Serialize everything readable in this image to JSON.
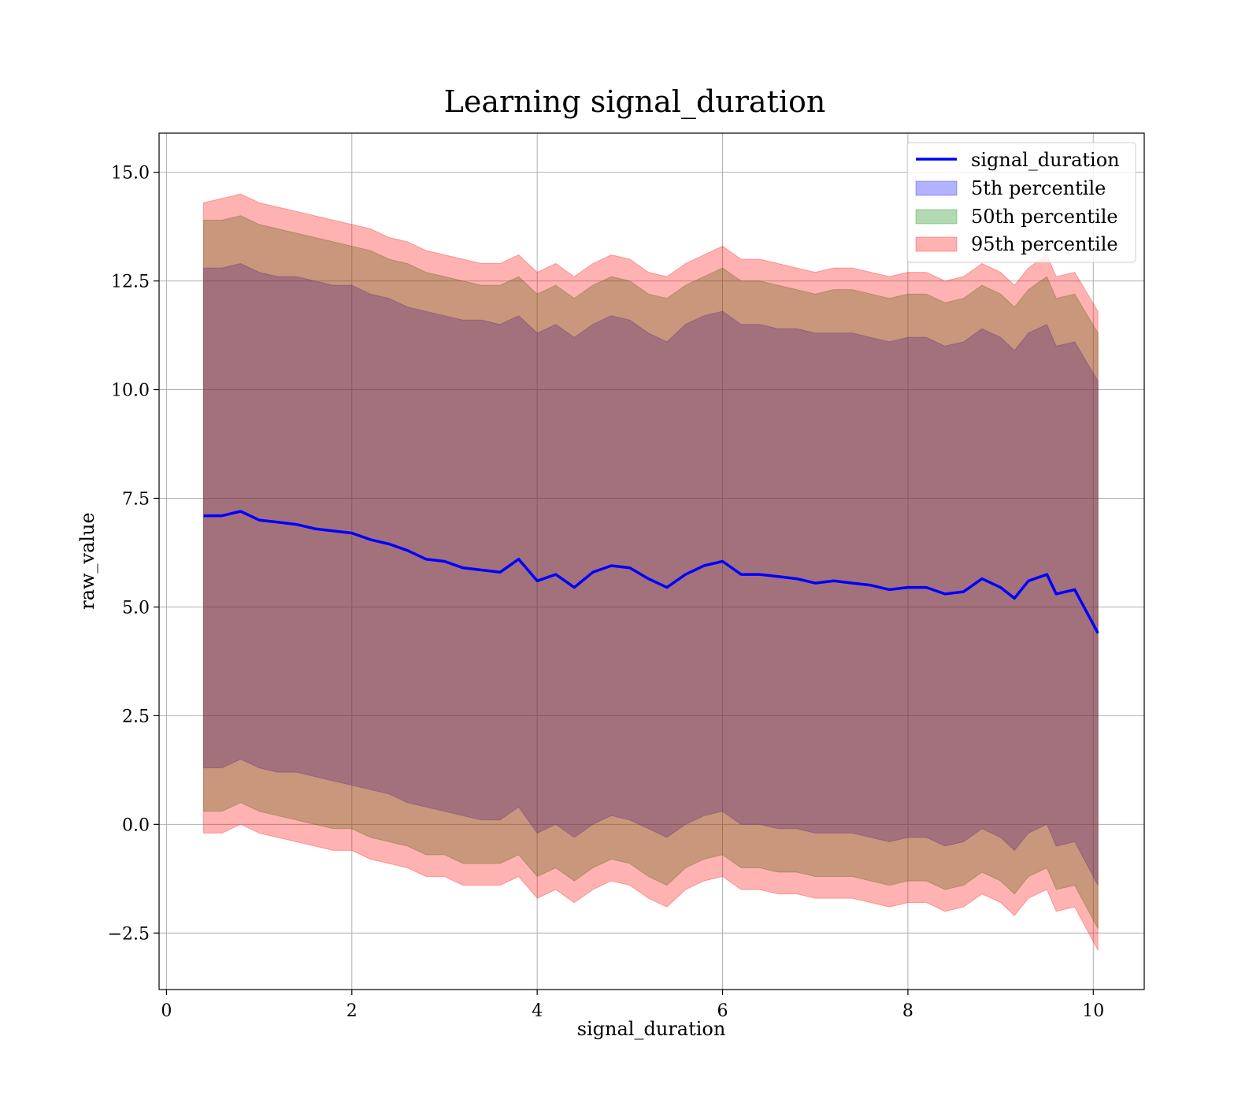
{
  "chart_data": {
    "type": "area",
    "title": "Learning signal_duration",
    "xlabel": "signal_duration",
    "ylabel": "raw_value",
    "xlim": [
      -0.08,
      10.55
    ],
    "ylim": [
      -3.8,
      15.9
    ],
    "xticks": [
      0,
      2,
      4,
      6,
      8,
      10
    ],
    "xtick_labels": [
      "0",
      "2",
      "4",
      "6",
      "8",
      "10"
    ],
    "yticks": [
      -2.5,
      0.0,
      2.5,
      5.0,
      7.5,
      10.0,
      12.5,
      15.0
    ],
    "ytick_labels": [
      "−2.5",
      "0.0",
      "2.5",
      "5.0",
      "7.5",
      "10.0",
      "12.5",
      "15.0"
    ],
    "grid": true,
    "legend_position": "top-right",
    "x": [
      0.4,
      0.6,
      0.8,
      1.0,
      1.2,
      1.4,
      1.6,
      1.8,
      2.0,
      2.2,
      2.4,
      2.6,
      2.8,
      3.0,
      3.2,
      3.4,
      3.6,
      3.8,
      4.0,
      4.2,
      4.4,
      4.6,
      4.8,
      5.0,
      5.2,
      5.4,
      5.6,
      5.8,
      6.0,
      6.2,
      6.4,
      6.6,
      6.8,
      7.0,
      7.2,
      7.4,
      7.6,
      7.8,
      8.0,
      8.2,
      8.4,
      8.6,
      8.8,
      9.0,
      9.15,
      9.3,
      9.5,
      9.6,
      9.8,
      10.05
    ],
    "series": [
      {
        "name": "signal_duration",
        "kind": "line",
        "color": "#0000ff",
        "values": [
          7.1,
          7.1,
          7.2,
          7.0,
          6.95,
          6.9,
          6.8,
          6.75,
          6.7,
          6.55,
          6.45,
          6.3,
          6.1,
          6.05,
          5.9,
          5.85,
          5.8,
          6.1,
          5.6,
          5.75,
          5.45,
          5.8,
          5.95,
          5.9,
          5.65,
          5.45,
          5.75,
          5.95,
          6.05,
          5.75,
          5.75,
          5.7,
          5.65,
          5.55,
          5.6,
          5.55,
          5.5,
          5.4,
          5.45,
          5.45,
          5.3,
          5.35,
          5.65,
          5.45,
          5.2,
          5.6,
          5.75,
          5.3,
          5.4,
          4.4
        ]
      },
      {
        "name": "5th percentile",
        "kind": "band",
        "color": "#0000ff",
        "upper": [
          12.8,
          12.8,
          12.9,
          12.7,
          12.6,
          12.6,
          12.5,
          12.4,
          12.4,
          12.2,
          12.1,
          11.9,
          11.8,
          11.7,
          11.6,
          11.6,
          11.5,
          11.7,
          11.3,
          11.5,
          11.2,
          11.5,
          11.7,
          11.6,
          11.3,
          11.1,
          11.5,
          11.7,
          11.8,
          11.5,
          11.5,
          11.4,
          11.4,
          11.3,
          11.3,
          11.3,
          11.2,
          11.1,
          11.2,
          11.2,
          11.0,
          11.1,
          11.4,
          11.2,
          10.9,
          11.3,
          11.5,
          11.0,
          11.1,
          10.2
        ],
        "lower": [
          1.3,
          1.3,
          1.5,
          1.3,
          1.2,
          1.2,
          1.1,
          1.0,
          0.9,
          0.8,
          0.7,
          0.5,
          0.4,
          0.3,
          0.2,
          0.1,
          0.1,
          0.4,
          -0.2,
          0.0,
          -0.3,
          0.0,
          0.2,
          0.1,
          -0.1,
          -0.3,
          0.0,
          0.2,
          0.3,
          0.0,
          0.0,
          -0.1,
          -0.1,
          -0.2,
          -0.2,
          -0.2,
          -0.3,
          -0.4,
          -0.3,
          -0.3,
          -0.5,
          -0.4,
          -0.1,
          -0.3,
          -0.6,
          -0.2,
          0.0,
          -0.5,
          -0.4,
          -1.4
        ]
      },
      {
        "name": "50th percentile",
        "kind": "band",
        "color": "#008000",
        "upper": [
          13.9,
          13.9,
          14.0,
          13.8,
          13.7,
          13.6,
          13.5,
          13.4,
          13.3,
          13.2,
          13.0,
          12.9,
          12.7,
          12.6,
          12.5,
          12.4,
          12.4,
          12.6,
          12.2,
          12.4,
          12.1,
          12.4,
          12.6,
          12.5,
          12.2,
          12.1,
          12.4,
          12.6,
          12.8,
          12.5,
          12.5,
          12.4,
          12.3,
          12.2,
          12.3,
          12.3,
          12.2,
          12.1,
          12.2,
          12.2,
          12.0,
          12.1,
          12.4,
          12.2,
          11.9,
          12.3,
          12.6,
          12.1,
          12.2,
          11.3
        ],
        "lower": [
          0.3,
          0.3,
          0.5,
          0.3,
          0.2,
          0.1,
          0.0,
          -0.1,
          -0.1,
          -0.3,
          -0.4,
          -0.5,
          -0.7,
          -0.7,
          -0.9,
          -0.9,
          -0.9,
          -0.7,
          -1.2,
          -1.0,
          -1.3,
          -1.0,
          -0.8,
          -0.9,
          -1.2,
          -1.4,
          -1.0,
          -0.8,
          -0.7,
          -1.0,
          -1.0,
          -1.1,
          -1.1,
          -1.2,
          -1.2,
          -1.2,
          -1.3,
          -1.4,
          -1.3,
          -1.3,
          -1.5,
          -1.4,
          -1.1,
          -1.3,
          -1.6,
          -1.2,
          -1.0,
          -1.5,
          -1.4,
          -2.4
        ]
      },
      {
        "name": "95th percentile",
        "kind": "band",
        "color": "#ff0000",
        "upper": [
          14.3,
          14.4,
          14.5,
          14.3,
          14.2,
          14.1,
          14.0,
          13.9,
          13.8,
          13.7,
          13.5,
          13.4,
          13.2,
          13.1,
          13.0,
          12.9,
          12.9,
          13.1,
          12.7,
          12.9,
          12.6,
          12.9,
          13.1,
          13.0,
          12.7,
          12.6,
          12.9,
          13.1,
          13.3,
          13.0,
          13.0,
          12.9,
          12.8,
          12.7,
          12.8,
          12.8,
          12.7,
          12.6,
          12.7,
          12.7,
          12.5,
          12.6,
          12.9,
          12.7,
          12.4,
          12.8,
          13.1,
          12.6,
          12.7,
          11.8
        ],
        "lower": [
          -0.2,
          -0.2,
          0.0,
          -0.2,
          -0.3,
          -0.4,
          -0.5,
          -0.6,
          -0.6,
          -0.8,
          -0.9,
          -1.0,
          -1.2,
          -1.2,
          -1.4,
          -1.4,
          -1.4,
          -1.2,
          -1.7,
          -1.5,
          -1.8,
          -1.5,
          -1.3,
          -1.4,
          -1.7,
          -1.9,
          -1.5,
          -1.3,
          -1.2,
          -1.5,
          -1.5,
          -1.6,
          -1.6,
          -1.7,
          -1.7,
          -1.7,
          -1.8,
          -1.9,
          -1.8,
          -1.8,
          -2.0,
          -1.9,
          -1.6,
          -1.8,
          -2.1,
          -1.7,
          -1.5,
          -2.0,
          -1.9,
          -2.9
        ]
      }
    ]
  }
}
